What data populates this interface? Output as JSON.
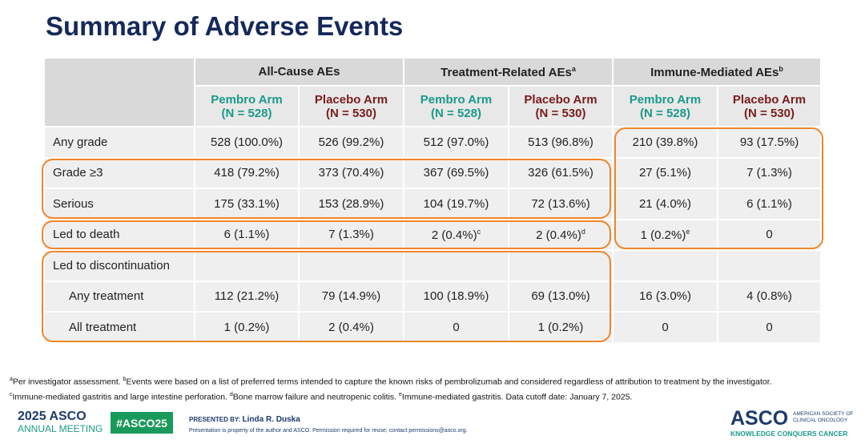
{
  "title": "Summary of Adverse Events",
  "table": {
    "groups": [
      {
        "text": "All-Cause AEs",
        "sup": null
      },
      {
        "text": "Treatment-Related AEs",
        "sup": "a"
      },
      {
        "text": "Immune-Mediated AEs",
        "sup": "b"
      }
    ],
    "arms": [
      {
        "name": "Pembro Arm",
        "n": "(N = 528)"
      },
      {
        "name": "Placebo Arm",
        "n": "(N = 530)"
      },
      {
        "name": "Pembro Arm",
        "n": "(N = 528)"
      },
      {
        "name": "Placebo Arm",
        "n": "(N = 530)"
      },
      {
        "name": "Pembro Arm",
        "n": "(N = 528)"
      },
      {
        "name": "Placebo Arm",
        "n": "(N = 530)"
      }
    ],
    "rows": [
      {
        "label": "Any grade",
        "cells": [
          "528 (100.0%)",
          "526 (99.2%)",
          "512 (97.0%)",
          "513 (96.8%)",
          "210 (39.8%)",
          "93 (17.5%)"
        ]
      },
      {
        "label": "Grade ≥3",
        "cells": [
          "418 (79.2%)",
          "373 (70.4%)",
          "367 (69.5%)",
          "326 (61.5%)",
          "27 (5.1%)",
          "7 (1.3%)"
        ]
      },
      {
        "label": "Serious",
        "cells": [
          "175 (33.1%)",
          "153 (28.9%)",
          "104 (19.7%)",
          "72 (13.6%)",
          "21 (4.0%)",
          "6 (1.1%)"
        ]
      },
      {
        "label": "Led to death",
        "cells": [
          "6 (1.1%)",
          "7 (1.3%)",
          {
            "text": "2 (0.4%)",
            "sup": "c"
          },
          {
            "text": "2 (0.4%)",
            "sup": "d"
          },
          {
            "text": "1 (0.2%)",
            "sup": "e"
          },
          "0"
        ]
      },
      {
        "label": "Led to discontinuation",
        "cells": [],
        "children": [
          {
            "label": "Any treatment",
            "cells": [
              "112 (21.2%)",
              "79 (14.9%)",
              "100 (18.9%)",
              "69 (13.0%)",
              "16 (3.0%)",
              "4 (0.8%)"
            ]
          },
          {
            "label": "All treatment",
            "cells": [
              "1 (0.2%)",
              "2 (0.4%)",
              "0",
              "1 (0.2%)",
              "0",
              "0"
            ]
          }
        ]
      }
    ]
  },
  "footnotes": [
    [
      {
        "sup": "a",
        "text": "Per investigator assessment. "
      },
      {
        "sup": "b",
        "text": "Events were based on a list of preferred terms intended to capture the known risks of pembrolizumab and considered regardless of attribution to treatment by the investigator."
      }
    ],
    [
      {
        "sup": "c",
        "text": "Immune-mediated gastritis and large intestine perforation. "
      },
      {
        "sup": "d",
        "text": "Bone marrow failure and neutropenic colitis. "
      },
      {
        "sup": "e",
        "text": "Immune-mediated gastritis.  Data cutoff date: January 7, 2025."
      }
    ]
  ],
  "footer": {
    "meeting_year": "2025 ASCO",
    "meeting_name": "ANNUAL MEETING",
    "hashtag": "#ASCO25",
    "presented_by_label": "PRESENTED BY:",
    "presenter": "Linda R. Duska",
    "disclaimer": "Presentation is property of the author and ASCO. Permission required for reuse; contact permissions@asco.org.",
    "logo": "ASCO",
    "society_line1": "AMERICAN SOCIETY OF",
    "society_line2": "CLINICAL ONCOLOGY",
    "tagline": "KNOWLEDGE CONQUERS CANCER"
  }
}
